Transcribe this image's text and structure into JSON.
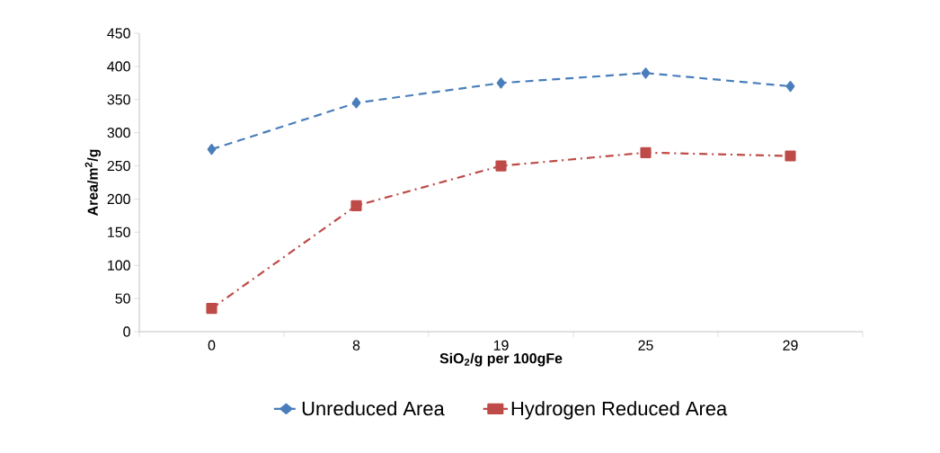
{
  "chart_data": {
    "type": "line",
    "xlabel": "SiO$_{2}$/g per 100gFe",
    "ylabel": "Area/m$^{2}$/g",
    "categories": [
      "0",
      "8",
      "19",
      "25",
      "29"
    ],
    "series": [
      {
        "name": "Unreduced Area",
        "color": "#4a7ebb",
        "values": [
          275,
          345,
          375,
          390,
          370
        ],
        "marker": "diamond",
        "line_style": "dashed"
      },
      {
        "name": "Hydrogen Reduced Area",
        "color": "#be4b48",
        "values": [
          35,
          190,
          250,
          270,
          265
        ],
        "marker": "square",
        "line_style": "dashdot"
      }
    ],
    "ylim": [
      0,
      450
    ],
    "yticks": [
      0,
      50,
      100,
      150,
      200,
      250,
      300,
      350,
      400,
      450
    ],
    "legend": "bottom",
    "grid": false
  }
}
